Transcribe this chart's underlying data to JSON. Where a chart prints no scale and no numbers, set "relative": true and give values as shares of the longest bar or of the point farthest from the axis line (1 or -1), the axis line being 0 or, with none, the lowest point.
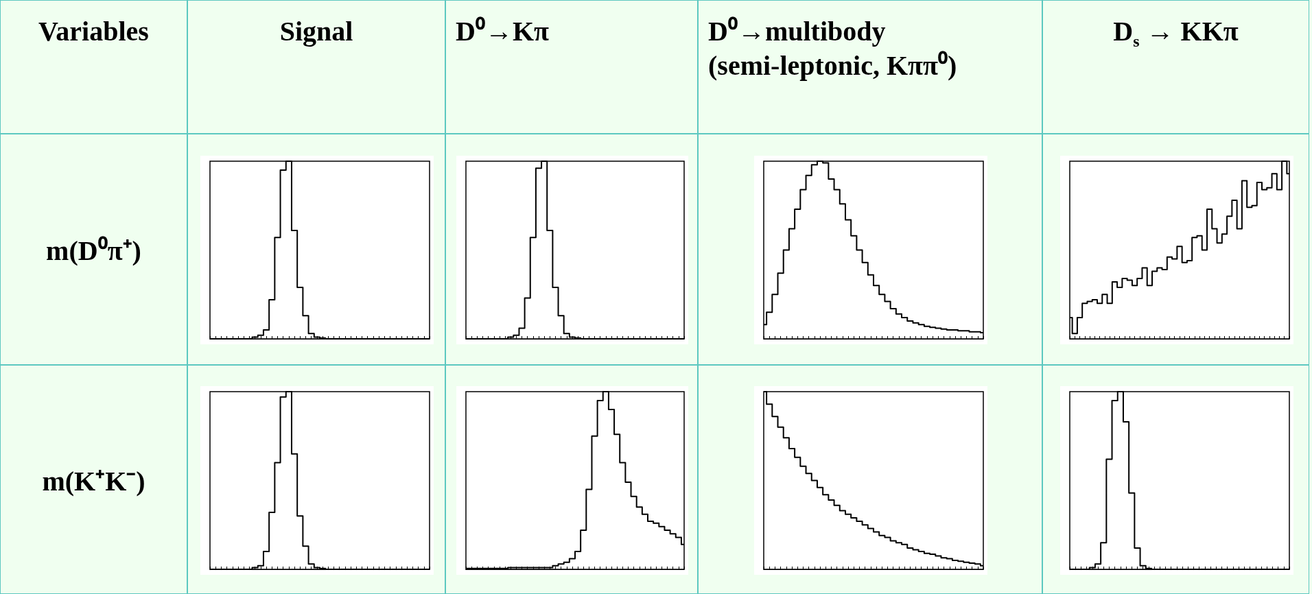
{
  "chart_data": [
    {
      "type": "other",
      "annotations": [
        "Variables",
        "Signal",
        "D⁰→Kπ",
        "D⁰→multibody\n(semi-leptonic, Kππ⁰)",
        "D$_{s}$ → KKπ",
        "m(D⁰π⁺)",
        "m(K⁺K⁻)"
      ]
    },
    {
      "type": "step",
      "relative": true,
      "color": "#000000",
      "categories": [
        null,
        null,
        null,
        null,
        null,
        null,
        null,
        null,
        null,
        null,
        null,
        null,
        null,
        null,
        null,
        null,
        null,
        null,
        null,
        null,
        null,
        null,
        null,
        null,
        null,
        null,
        null,
        null,
        null,
        null,
        null,
        null,
        null,
        null,
        null,
        null,
        null,
        null,
        null,
        null
      ],
      "values": [
        0,
        0,
        0,
        0,
        0,
        0,
        0,
        0,
        0.01,
        0.02,
        0.05,
        0.22,
        0.57,
        0.95,
        1,
        0.61,
        0.29,
        0.13,
        0.03,
        0.01,
        0.005,
        0,
        0,
        0,
        0,
        0,
        0,
        0,
        0,
        0,
        0,
        0,
        0,
        0,
        0,
        0,
        0,
        0,
        0,
        0
      ]
    },
    {
      "type": "step",
      "relative": true,
      "color": "#000000",
      "categories": [
        null,
        null,
        null,
        null,
        null,
        null,
        null,
        null,
        null,
        null,
        null,
        null,
        null,
        null,
        null,
        null,
        null,
        null,
        null,
        null,
        null,
        null,
        null,
        null,
        null,
        null,
        null,
        null,
        null,
        null,
        null,
        null,
        null,
        null,
        null,
        null,
        null,
        null,
        null,
        null
      ],
      "values": [
        0,
        0,
        0,
        0,
        0,
        0,
        0,
        0,
        0.01,
        0.02,
        0.06,
        0.23,
        0.57,
        0.96,
        1,
        0.61,
        0.29,
        0.13,
        0.03,
        0.01,
        0.005,
        0,
        0,
        0,
        0,
        0,
        0,
        0,
        0,
        0,
        0,
        0,
        0,
        0,
        0,
        0,
        0,
        0,
        0,
        0
      ]
    },
    {
      "type": "step",
      "relative": true,
      "color": "#000000",
      "categories": [
        null,
        null,
        null,
        null,
        null,
        null,
        null,
        null,
        null,
        null,
        null,
        null,
        null,
        null,
        null,
        null,
        null,
        null,
        null,
        null,
        null,
        null,
        null,
        null,
        null,
        null,
        null,
        null,
        null,
        null,
        null,
        null,
        null,
        null,
        null,
        null,
        null,
        null,
        null,
        null
      ],
      "values": [
        0.08,
        0.15,
        0.25,
        0.37,
        0.5,
        0.62,
        0.73,
        0.84,
        0.92,
        0.98,
        1,
        0.99,
        0.9,
        0.84,
        0.76,
        0.67,
        0.58,
        0.5,
        0.43,
        0.36,
        0.3,
        0.25,
        0.21,
        0.17,
        0.14,
        0.12,
        0.1,
        0.09,
        0.08,
        0.07,
        0.065,
        0.06,
        0.055,
        0.05,
        0.05,
        0.045,
        0.045,
        0.04,
        0.04,
        0.035
      ]
    },
    {
      "type": "step",
      "relative": true,
      "color": "#000000",
      "categories": [
        null,
        null,
        null,
        null,
        null,
        null,
        null,
        null,
        null,
        null,
        null,
        null,
        null,
        null,
        null,
        null,
        null,
        null,
        null,
        null,
        null,
        null,
        null,
        null,
        null,
        null,
        null,
        null,
        null,
        null,
        null,
        null,
        null,
        null,
        null,
        null,
        null,
        null,
        null,
        null,
        null,
        null,
        null,
        null,
        null
      ],
      "values": [
        0.12,
        0.03,
        0.12,
        0.2,
        0.21,
        0.22,
        0.2,
        0.25,
        0.2,
        0.32,
        0.29,
        0.34,
        0.33,
        0.3,
        0.34,
        0.4,
        0.3,
        0.38,
        0.4,
        0.39,
        0.46,
        0.45,
        0.52,
        0.43,
        0.44,
        0.57,
        0.58,
        0.5,
        0.73,
        0.62,
        0.54,
        0.59,
        0.69,
        0.78,
        0.62,
        0.89,
        0.74,
        0.75,
        0.88,
        0.84,
        0.85,
        0.93,
        0.84,
        1,
        0.93
      ]
    },
    {
      "type": "step",
      "relative": true,
      "color": "#000000",
      "categories": [
        null,
        null,
        null,
        null,
        null,
        null,
        null,
        null,
        null,
        null,
        null,
        null,
        null,
        null,
        null,
        null,
        null,
        null,
        null,
        null,
        null,
        null,
        null,
        null,
        null,
        null,
        null,
        null,
        null,
        null,
        null,
        null,
        null,
        null,
        null,
        null,
        null,
        null,
        null,
        null
      ],
      "values": [
        0,
        0,
        0,
        0,
        0,
        0,
        0,
        0,
        0.01,
        0.02,
        0.1,
        0.32,
        0.6,
        0.97,
        1,
        0.65,
        0.3,
        0.13,
        0.03,
        0.01,
        0.005,
        0,
        0,
        0,
        0,
        0,
        0,
        0,
        0,
        0,
        0,
        0,
        0,
        0,
        0,
        0,
        0,
        0,
        0,
        0
      ]
    },
    {
      "type": "step",
      "relative": true,
      "color": "#000000",
      "categories": [
        null,
        null,
        null,
        null,
        null,
        null,
        null,
        null,
        null,
        null,
        null,
        null,
        null,
        null,
        null,
        null,
        null,
        null,
        null,
        null,
        null,
        null,
        null,
        null,
        null,
        null,
        null,
        null,
        null,
        null,
        null,
        null,
        null,
        null,
        null,
        null,
        null,
        null,
        null,
        null
      ],
      "values": [
        0.005,
        0.005,
        0.005,
        0.005,
        0.005,
        0.005,
        0.005,
        0.005,
        0.01,
        0.01,
        0.01,
        0.01,
        0.01,
        0.01,
        0.01,
        0.01,
        0.02,
        0.03,
        0.04,
        0.06,
        0.1,
        0.22,
        0.45,
        0.75,
        0.95,
        1,
        0.9,
        0.76,
        0.6,
        0.49,
        0.41,
        0.35,
        0.31,
        0.27,
        0.26,
        0.24,
        0.22,
        0.2,
        0.18,
        0.14
      ]
    },
    {
      "type": "step",
      "relative": true,
      "color": "#000000",
      "categories": [
        null,
        null,
        null,
        null,
        null,
        null,
        null,
        null,
        null,
        null,
        null,
        null,
        null,
        null,
        null,
        null,
        null,
        null,
        null,
        null,
        null,
        null,
        null,
        null,
        null,
        null,
        null,
        null,
        null,
        null,
        null,
        null,
        null,
        null,
        null,
        null,
        null,
        null,
        null,
        null
      ],
      "values": [
        1,
        0.93,
        0.86,
        0.8,
        0.74,
        0.68,
        0.63,
        0.58,
        0.54,
        0.5,
        0.46,
        0.42,
        0.39,
        0.36,
        0.33,
        0.31,
        0.29,
        0.27,
        0.25,
        0.23,
        0.21,
        0.19,
        0.18,
        0.16,
        0.15,
        0.14,
        0.12,
        0.11,
        0.1,
        0.09,
        0.085,
        0.075,
        0.065,
        0.06,
        0.05,
        0.045,
        0.04,
        0.035,
        0.03,
        0.02
      ]
    },
    {
      "type": "step",
      "relative": true,
      "color": "#000000",
      "categories": [
        null,
        null,
        null,
        null,
        null,
        null,
        null,
        null,
        null,
        null,
        null,
        null,
        null,
        null,
        null,
        null,
        null,
        null,
        null,
        null,
        null,
        null,
        null,
        null,
        null,
        null,
        null,
        null,
        null,
        null,
        null,
        null,
        null,
        null,
        null,
        null,
        null,
        null,
        null,
        null
      ],
      "values": [
        0,
        0,
        0,
        0,
        0.01,
        0.03,
        0.15,
        0.62,
        0.95,
        1,
        0.83,
        0.43,
        0.12,
        0.02,
        0.005,
        0,
        0,
        0,
        0,
        0,
        0,
        0,
        0,
        0,
        0,
        0,
        0,
        0,
        0,
        0,
        0,
        0,
        0,
        0,
        0,
        0,
        0,
        0,
        0,
        0
      ]
    }
  ]
}
